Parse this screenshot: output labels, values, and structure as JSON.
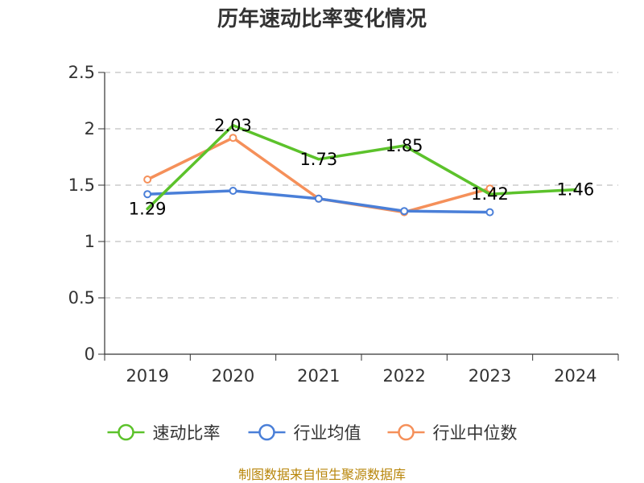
{
  "chart_data": {
    "type": "line",
    "title": "历年速动比率变化情况",
    "categories": [
      "2019",
      "2020",
      "2021",
      "2022",
      "2023",
      "2024"
    ],
    "ylim": [
      0,
      2.5
    ],
    "yticks": [
      "0",
      "0.5",
      "1",
      "1.5",
      "2",
      "2.5"
    ],
    "grid": true,
    "legend_position": "bottom",
    "series": [
      {
        "name": "速动比率",
        "color": "#5cc22b",
        "values": [
          1.29,
          2.03,
          1.73,
          1.85,
          1.42,
          1.46
        ],
        "labels": [
          "1.29",
          "2.03",
          "1.73",
          "1.85",
          "1.42",
          "1.46"
        ],
        "markers": false
      },
      {
        "name": "行业均值",
        "color": "#4a7fd8",
        "values": [
          1.42,
          1.45,
          1.38,
          1.27,
          1.26,
          null
        ],
        "markers": true
      },
      {
        "name": "行业中位数",
        "color": "#f5905a",
        "values": [
          1.55,
          1.92,
          1.38,
          1.26,
          1.47,
          null
        ],
        "markers": true
      }
    ],
    "source": "制图数据来自恒生聚源数据库"
  }
}
